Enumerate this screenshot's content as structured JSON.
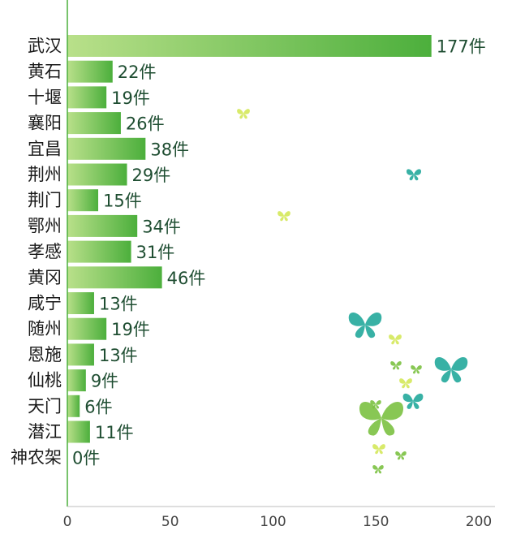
{
  "chart_data": {
    "type": "bar",
    "orientation": "horizontal",
    "categories": [
      "武汉",
      "黄石",
      "十堰",
      "襄阳",
      "宜昌",
      "荆州",
      "荆门",
      "鄂州",
      "孝感",
      "黄冈",
      "咸宁",
      "随州",
      "恩施",
      "仙桃",
      "天门",
      "潜江",
      "神农架"
    ],
    "values": [
      177,
      22,
      19,
      26,
      38,
      29,
      15,
      34,
      31,
      46,
      13,
      19,
      13,
      9,
      6,
      11,
      0
    ],
    "value_labels": [
      "177件",
      "22件",
      "19件",
      "26件",
      "38件",
      "29件",
      "15件",
      "34件",
      "31件",
      "46件",
      "13件",
      "19件",
      "13件",
      "9件",
      "6件",
      "11件",
      "0件"
    ],
    "x_ticks": [
      "0",
      "50",
      "100",
      "150",
      "200"
    ],
    "xlim": [
      0,
      200
    ],
    "grid": false,
    "legend": "none",
    "bar_color_light": "#b9e08a",
    "bar_color_dark": "#4caf3c",
    "axis_color": "#4caf3c"
  },
  "decor": {
    "butterfly_colors": [
      "#23a99c",
      "#7cc142",
      "#d4e85a"
    ]
  }
}
